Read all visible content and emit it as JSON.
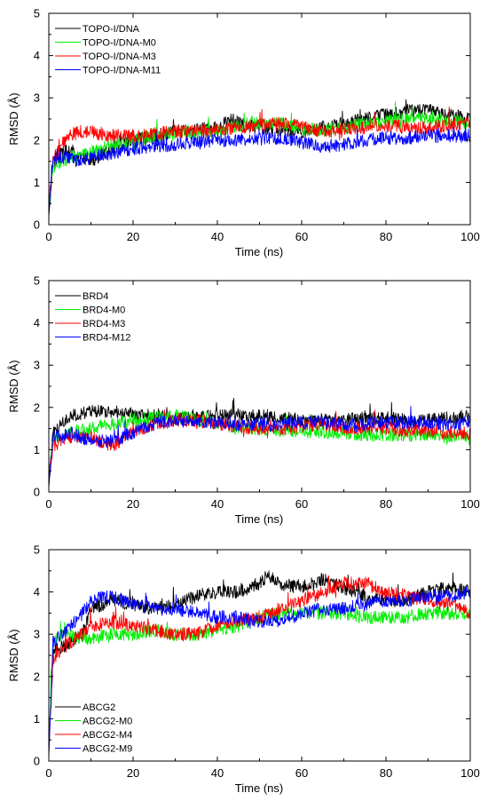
{
  "chart_data": [
    {
      "type": "line",
      "xlabel": "Time (ns)",
      "ylabel": "RMSD (Å)",
      "xlim": [
        0,
        100
      ],
      "ylim": [
        0,
        5
      ],
      "xticks": [
        0,
        20,
        40,
        60,
        80,
        100
      ],
      "yticks": [
        0,
        1,
        2,
        3,
        4,
        5
      ],
      "legend_position": "top-left",
      "series": [
        {
          "name": "TOPO-I/DNA",
          "color": "#000000",
          "x": [
            0,
            1,
            2,
            3,
            5,
            7,
            10,
            15,
            20,
            25,
            30,
            35,
            40,
            44,
            45,
            50,
            55,
            60,
            65,
            70,
            75,
            80,
            85,
            90,
            95,
            100
          ],
          "y": [
            0.2,
            1.4,
            1.6,
            1.7,
            1.8,
            1.6,
            1.5,
            1.8,
            2.0,
            2.1,
            2.2,
            2.25,
            2.3,
            2.5,
            2.4,
            2.3,
            2.25,
            2.2,
            2.3,
            2.4,
            2.5,
            2.6,
            2.7,
            2.7,
            2.6,
            2.5
          ]
        },
        {
          "name": "TOPO-I/DNA-M0",
          "color": "#00ee00",
          "x": [
            0,
            1,
            2,
            3,
            5,
            7,
            10,
            15,
            20,
            25,
            30,
            35,
            40,
            45,
            50,
            55,
            60,
            65,
            70,
            75,
            80,
            85,
            90,
            95,
            100
          ],
          "y": [
            0.4,
            1.3,
            1.4,
            1.5,
            1.6,
            1.6,
            1.7,
            1.9,
            2.0,
            2.1,
            2.15,
            2.2,
            2.2,
            2.35,
            2.4,
            2.4,
            2.3,
            2.2,
            2.3,
            2.4,
            2.45,
            2.5,
            2.5,
            2.45,
            2.4
          ]
        },
        {
          "name": "TOPO-I/DNA-M3",
          "color": "#ff0000",
          "x": [
            0,
            1,
            2,
            3,
            5,
            7,
            10,
            15,
            20,
            25,
            30,
            35,
            40,
            45,
            50,
            55,
            60,
            65,
            70,
            75,
            80,
            85,
            90,
            95,
            100
          ],
          "y": [
            0.5,
            1.5,
            1.7,
            1.9,
            2.1,
            2.2,
            2.2,
            2.1,
            2.1,
            2.15,
            2.2,
            2.2,
            2.25,
            2.3,
            2.35,
            2.4,
            2.3,
            2.2,
            2.25,
            2.3,
            2.35,
            2.3,
            2.3,
            2.35,
            2.4
          ]
        },
        {
          "name": "TOPO-I/DNA-M11",
          "color": "#0000ff",
          "x": [
            0,
            1,
            2,
            3,
            5,
            7,
            10,
            15,
            20,
            25,
            30,
            35,
            40,
            45,
            50,
            55,
            60,
            65,
            70,
            75,
            80,
            85,
            90,
            95,
            100
          ],
          "y": [
            0.3,
            1.5,
            1.6,
            1.6,
            1.6,
            1.5,
            1.6,
            1.7,
            1.8,
            1.85,
            1.9,
            1.95,
            2.0,
            2.0,
            2.05,
            2.05,
            1.95,
            1.85,
            1.9,
            2.0,
            2.05,
            2.05,
            2.1,
            2.1,
            2.1
          ]
        }
      ]
    },
    {
      "type": "line",
      "xlabel": "Time (ns)",
      "ylabel": "RMSD (Å)",
      "xlim": [
        0,
        100
      ],
      "ylim": [
        0,
        5
      ],
      "xticks": [
        0,
        20,
        40,
        60,
        80,
        100
      ],
      "yticks": [
        0,
        1,
        2,
        3,
        4,
        5
      ],
      "legend_position": "top-left",
      "series": [
        {
          "name": "BRD4",
          "color": "#000000",
          "x": [
            0,
            1,
            3,
            5,
            10,
            15,
            20,
            25,
            30,
            35,
            40,
            45,
            50,
            55,
            60,
            65,
            70,
            75,
            80,
            85,
            90,
            95,
            100
          ],
          "y": [
            0.1,
            1.4,
            1.6,
            1.8,
            1.9,
            1.9,
            1.8,
            1.8,
            1.75,
            1.8,
            1.8,
            1.8,
            1.8,
            1.75,
            1.7,
            1.7,
            1.7,
            1.75,
            1.75,
            1.7,
            1.7,
            1.75,
            1.8
          ]
        },
        {
          "name": "BRD4-M0",
          "color": "#00ee00",
          "x": [
            0,
            1,
            3,
            5,
            10,
            15,
            20,
            25,
            30,
            35,
            40,
            45,
            50,
            55,
            60,
            65,
            70,
            75,
            80,
            85,
            90,
            95,
            100
          ],
          "y": [
            0.5,
            1.2,
            1.3,
            1.4,
            1.5,
            1.6,
            1.7,
            1.75,
            1.8,
            1.7,
            1.6,
            1.5,
            1.5,
            1.45,
            1.45,
            1.4,
            1.4,
            1.35,
            1.35,
            1.35,
            1.35,
            1.3,
            1.3
          ]
        },
        {
          "name": "BRD4-M3",
          "color": "#ff0000",
          "x": [
            0,
            1,
            3,
            5,
            10,
            15,
            20,
            25,
            30,
            35,
            40,
            45,
            50,
            55,
            60,
            65,
            70,
            75,
            80,
            85,
            90,
            95,
            100
          ],
          "y": [
            0.3,
            1.1,
            1.2,
            1.3,
            1.3,
            1.1,
            1.4,
            1.6,
            1.7,
            1.7,
            1.6,
            1.55,
            1.5,
            1.5,
            1.55,
            1.6,
            1.55,
            1.5,
            1.5,
            1.45,
            1.45,
            1.4,
            1.4
          ]
        },
        {
          "name": "BRD4-M12",
          "color": "#0000ff",
          "x": [
            0,
            1,
            3,
            5,
            10,
            15,
            20,
            25,
            30,
            35,
            40,
            45,
            50,
            55,
            60,
            65,
            70,
            75,
            80,
            85,
            90,
            95,
            100
          ],
          "y": [
            0.2,
            1.3,
            1.35,
            1.4,
            1.2,
            1.2,
            1.4,
            1.6,
            1.7,
            1.65,
            1.65,
            1.6,
            1.6,
            1.6,
            1.65,
            1.65,
            1.6,
            1.6,
            1.65,
            1.65,
            1.65,
            1.6,
            1.65
          ]
        }
      ]
    },
    {
      "type": "line",
      "xlabel": "Time (ns)",
      "ylabel": "RMSD (Å)",
      "xlim": [
        0,
        100
      ],
      "ylim": [
        0,
        5
      ],
      "xticks": [
        0,
        20,
        40,
        60,
        80,
        100
      ],
      "yticks": [
        0,
        1,
        2,
        3,
        4,
        5
      ],
      "legend_position": "bottom-left",
      "series": [
        {
          "name": "ABCG2",
          "color": "#000000",
          "x": [
            0,
            1,
            3,
            5,
            8,
            10,
            15,
            20,
            25,
            30,
            35,
            40,
            45,
            50,
            52,
            55,
            60,
            65,
            70,
            75,
            80,
            85,
            90,
            95,
            100
          ],
          "y": [
            0.3,
            2.6,
            2.7,
            2.8,
            3.0,
            3.6,
            3.8,
            3.7,
            3.6,
            3.7,
            3.9,
            4.0,
            4.0,
            4.2,
            4.4,
            4.2,
            4.1,
            4.3,
            4.1,
            3.9,
            3.8,
            3.8,
            4.0,
            4.1,
            4.0
          ]
        },
        {
          "name": "ABCG2-M0",
          "color": "#00ee00",
          "x": [
            0,
            1,
            3,
            5,
            8,
            10,
            15,
            20,
            25,
            30,
            35,
            40,
            45,
            50,
            55,
            60,
            65,
            70,
            75,
            80,
            85,
            90,
            95,
            100
          ],
          "y": [
            0.5,
            2.8,
            3.0,
            3.0,
            2.9,
            2.9,
            3.0,
            3.0,
            3.1,
            3.0,
            3.0,
            3.1,
            3.2,
            3.4,
            3.5,
            3.5,
            3.5,
            3.5,
            3.4,
            3.4,
            3.4,
            3.5,
            3.5,
            3.5
          ]
        },
        {
          "name": "ABCG2-M4",
          "color": "#ff0000",
          "x": [
            0,
            1,
            3,
            5,
            8,
            10,
            15,
            20,
            25,
            30,
            35,
            40,
            45,
            50,
            55,
            60,
            65,
            70,
            75,
            80,
            85,
            90,
            95,
            100
          ],
          "y": [
            0.2,
            2.4,
            2.6,
            2.8,
            3.0,
            3.2,
            3.3,
            3.2,
            3.1,
            3.0,
            3.0,
            3.2,
            3.3,
            3.4,
            3.6,
            3.8,
            4.0,
            4.2,
            4.2,
            4.0,
            3.9,
            3.8,
            3.7,
            3.5
          ]
        },
        {
          "name": "ABCG2-M9",
          "color": "#0000ff",
          "x": [
            0,
            1,
            3,
            5,
            8,
            10,
            15,
            20,
            25,
            30,
            35,
            40,
            45,
            50,
            55,
            60,
            65,
            70,
            75,
            80,
            85,
            90,
            95,
            100
          ],
          "y": [
            0.1,
            2.8,
            3.0,
            3.2,
            3.5,
            3.8,
            3.9,
            3.7,
            3.6,
            3.6,
            3.5,
            3.4,
            3.4,
            3.3,
            3.3,
            3.5,
            3.6,
            3.6,
            3.7,
            3.8,
            3.8,
            3.9,
            3.9,
            4.0
          ]
        }
      ]
    }
  ]
}
